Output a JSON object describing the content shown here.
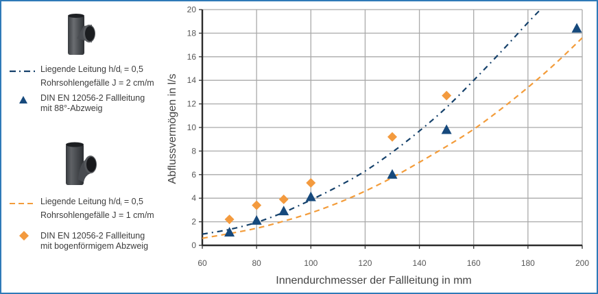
{
  "legend": {
    "items": [
      {
        "id": "blue-curve",
        "symbol": "dash-dot-line",
        "color": "#14406a",
        "line1_pre": "Liegende Leitung h/d",
        "line1_sub": "i",
        "line1_post": " = 0,5",
        "line2": "Rohrsohlengefälle J = 2 cm/m"
      },
      {
        "id": "blue-triangles",
        "symbol": "triangle",
        "color": "#16497c",
        "line1": "DIN EN 12056-2 Fallleitung",
        "line2": "mit 88°-Abzweig"
      },
      {
        "id": "orange-curve",
        "symbol": "dashed-line",
        "color": "#f39c3a",
        "line1_pre": "Liegende Leitung h/d",
        "line1_sub": "i",
        "line1_post": " = 0,5",
        "line2": "Rohrsohlengefälle J = 1 cm/m"
      },
      {
        "id": "orange-diamonds",
        "symbol": "diamond",
        "color": "#f39a3e",
        "line1": "DIN EN 12056-2 Fallleitung",
        "line2": "mit bogenförmigem Abzweig"
      }
    ],
    "images": [
      {
        "name": "t-pipe-88-degree-icon"
      },
      {
        "name": "t-pipe-curved-branch-icon"
      }
    ]
  },
  "chart_data": {
    "type": "scatter",
    "title": "",
    "xlabel": "Innendurchmesser der Fallleitung in mm",
    "ylabel": "Abflussvermögen in l/s",
    "xlim": [
      60,
      200
    ],
    "ylim": [
      0,
      20
    ],
    "xticks": [
      60,
      80,
      100,
      120,
      140,
      160,
      180,
      200
    ],
    "yticks": [
      0,
      2,
      4,
      6,
      8,
      10,
      12,
      14,
      16,
      18,
      20
    ],
    "grid": true,
    "legend_position": "left-outside",
    "series": [
      {
        "name": "Liegende Leitung h/di = 0,5, Rohrsohlengefälle J = 2 cm/m",
        "kind": "line",
        "style": "dash-dot",
        "color": "#14406a",
        "x": [
          60,
          70,
          80,
          90,
          100,
          110,
          120,
          130,
          140,
          150,
          160,
          170,
          180,
          184.6
        ],
        "y": [
          0.95,
          1.35,
          1.95,
          2.8,
          3.85,
          5.0,
          6.3,
          7.9,
          9.7,
          11.7,
          14.0,
          16.4,
          18.9,
          20.0
        ]
      },
      {
        "name": "DIN EN 12056-2 Fallleitung mit 88°-Abzweig",
        "kind": "scatter",
        "marker": "triangle",
        "color": "#16497c",
        "x": [
          70,
          80,
          90,
          100,
          130,
          150,
          198
        ],
        "y": [
          1.1,
          2.1,
          2.9,
          4.1,
          6.0,
          9.8,
          18.4
        ]
      },
      {
        "name": "Liegende Leitung h/di = 0,5, Rohrsohlengefälle J = 1 cm/m",
        "kind": "line",
        "style": "dashed",
        "color": "#f39c3a",
        "x": [
          60,
          70,
          80,
          90,
          100,
          110,
          120,
          130,
          140,
          150,
          160,
          170,
          180,
          190,
          200
        ],
        "y": [
          0.6,
          1.0,
          1.45,
          2.05,
          2.75,
          3.6,
          4.6,
          5.75,
          7.05,
          8.4,
          9.85,
          11.55,
          13.4,
          15.4,
          17.6
        ]
      },
      {
        "name": "DIN EN 12056-2 Fallleitung mit bogenförmigem Abzweig",
        "kind": "scatter",
        "marker": "diamond",
        "color": "#f39a3e",
        "x": [
          70,
          80,
          90,
          100,
          130,
          150
        ],
        "y": [
          2.2,
          3.4,
          3.9,
          5.3,
          9.2,
          12.7
        ]
      }
    ]
  }
}
